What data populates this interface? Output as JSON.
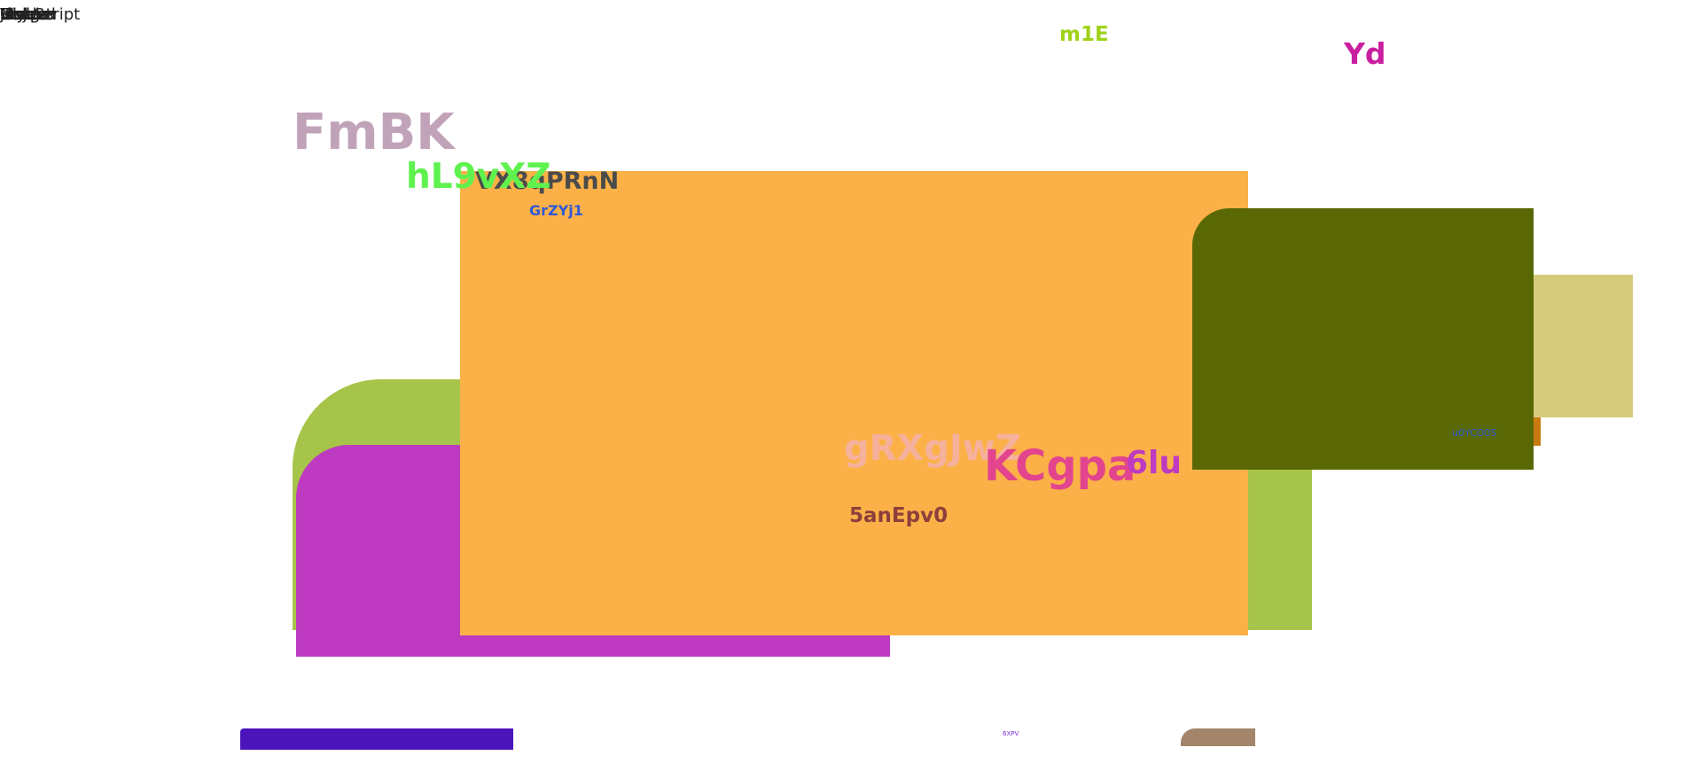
{
  "corner_labels": [
    "Vendor",
    "Hidden",
    "Script",
    "Image",
    "Embed",
    "Style",
    "Link",
    "Meta",
    "Object",
    "Iframe",
    "JavaScript"
  ],
  "labels": {
    "m1e": "m1E",
    "yd": "Yd",
    "fmbk": "FmBK",
    "hl9": "hL9vXZ",
    "vx8": "VX8qPRnN",
    "grzyj1": "GrZYj1",
    "grxgjwz": "gRXgJwZ",
    "kcgpa": "KCgpa",
    "six_lu": "6lu",
    "fiveanepv0": "5anEpv0",
    "small_blue": "u0YCO0S",
    "tiny_bottom": "6XPV"
  },
  "colors": {
    "orange": "#fbb147",
    "olive": "#596804",
    "khaki": "#d6cb7d",
    "lime": "#a7c44a",
    "magenta": "#bd3ac1",
    "indigo": "#4b14bb",
    "brown": "#a2856a",
    "dark_orange": "#c87a10"
  }
}
